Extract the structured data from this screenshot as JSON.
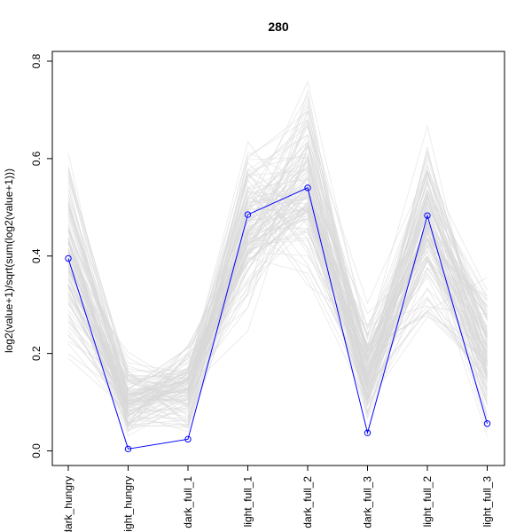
{
  "chart_data": {
    "type": "line",
    "title": "280",
    "xlabel": "",
    "ylabel": "log2(value+1)/sqrt(sum(log2(value+1)))",
    "categories": [
      "dark_hungry",
      "light_hungry",
      "dark_full_1",
      "light_full_1",
      "dark_full_2",
      "dark_full_3",
      "light_full_2",
      "light_full_3"
    ],
    "ylim": [
      -0.03,
      0.82
    ],
    "yticks": [
      0.0,
      0.2,
      0.4,
      0.6,
      0.8
    ],
    "ytick_labels": [
      "0.0",
      "0.2",
      "0.4",
      "0.6",
      "0.8"
    ],
    "grid": false,
    "legend": "none",
    "background_lines": {
      "color": "#d9d9d9",
      "count": 120,
      "ranges": [
        [
          0.15,
          0.66
        ],
        [
          0.0,
          0.22
        ],
        [
          0.0,
          0.27
        ],
        [
          0.21,
          0.69
        ],
        [
          0.3,
          0.8
        ],
        [
          0.0,
          0.33
        ],
        [
          0.2,
          0.71
        ],
        [
          0.0,
          0.38
        ]
      ]
    },
    "series": [
      {
        "color": "#0000ff",
        "values": [
          0.395,
          0.004,
          0.024,
          0.485,
          0.54,
          0.037,
          0.483,
          0.056
        ]
      }
    ]
  }
}
